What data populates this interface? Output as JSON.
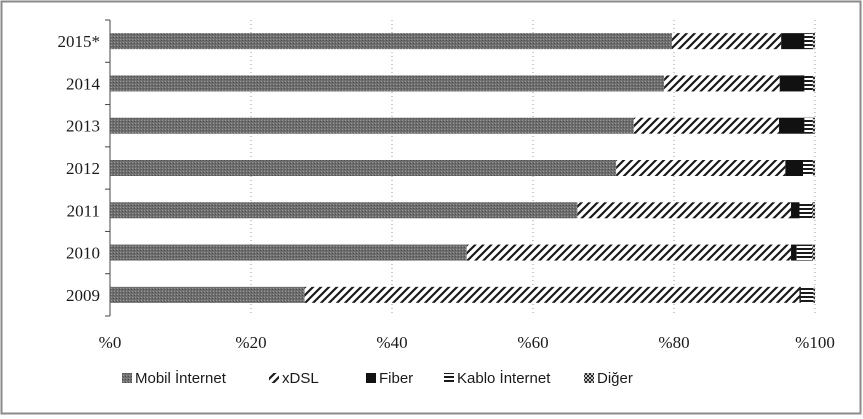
{
  "chart_data": {
    "type": "bar",
    "orientation": "horizontal",
    "stacked": true,
    "stacking": "percent",
    "categories": [
      "2015*",
      "2014",
      "2013",
      "2012",
      "2011",
      "2010",
      "2009"
    ],
    "series": [
      {
        "name": "Mobil İnternet",
        "values": [
          79.7,
          78.6,
          74.3,
          71.8,
          66.3,
          50.6,
          27.6
        ],
        "pattern": "solid-gray"
      },
      {
        "name": "xDSL",
        "values": [
          15.5,
          16.4,
          20.6,
          24.0,
          30.3,
          46.0,
          70.2
        ],
        "pattern": "diagonal-hatch"
      },
      {
        "name": "Fiber",
        "values": [
          3.3,
          3.5,
          3.6,
          2.5,
          1.2,
          0.8,
          0.2
        ],
        "pattern": "solid-black"
      },
      {
        "name": "Kablo İnternet",
        "values": [
          1.2,
          1.2,
          1.2,
          1.4,
          1.8,
          2.2,
          1.8
        ],
        "pattern": "horizontal-lines"
      },
      {
        "name": "Diğer",
        "values": [
          0.3,
          0.3,
          0.3,
          0.3,
          0.4,
          0.4,
          0.2
        ],
        "pattern": "crosshatch"
      }
    ],
    "x_axis": {
      "range": [
        0,
        100
      ],
      "ticks": [
        0,
        20,
        40,
        60,
        80,
        100
      ],
      "tick_labels": [
        "%0",
        "%20",
        "%40",
        "%60",
        "%80",
        "%100"
      ]
    },
    "grid": {
      "vertical": true,
      "style": "dotted"
    },
    "legend": {
      "position": "bottom"
    },
    "colors": {
      "mobil": "#707070",
      "hatch": "#1a1a1a",
      "fiber": "#111111",
      "border": "#8a8a8a"
    }
  }
}
